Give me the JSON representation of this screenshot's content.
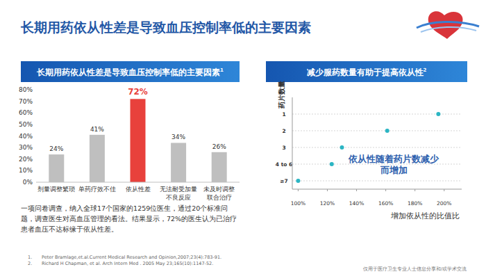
{
  "page": {
    "title": "长期用药依从性差是导致血压控制率低的主要因素",
    "footnotes": [
      {
        "number": "1.",
        "text": "Peter Bramlage,et.al.Current Medical Research and Opinion,2007;23(4):783-91."
      },
      {
        "number": "2.",
        "text": "Richard H Chapman, et al. Arch Intern Med . 2005 May 23;165(10):1147-52."
      }
    ],
    "disclaimer": "仅用于医疗卫生专业人士信息分享和/或学术交流"
  },
  "chart_data": [
    {
      "type": "bar",
      "title": "长期用药依从性差是导致血压控制率低的主要因素",
      "title_ref": "1",
      "categories": [
        "剂量调整繁琐",
        "单药疗效不佳",
        "依从性差",
        "无法耐受加量\n不良反应",
        "未及时调整\n联合治疗"
      ],
      "values": [
        24,
        41,
        72,
        34,
        26
      ],
      "value_labels": [
        "24%",
        "41%",
        "72%",
        "34%",
        "26%"
      ],
      "colors": [
        "#bfbfbf",
        "#bfbfbf",
        "#e8413c",
        "#bfbfbf",
        "#bfbfbf"
      ],
      "ylim": [
        0,
        80
      ],
      "yticks": [
        {
          "value": 0,
          "label": "0%"
        },
        {
          "value": 10,
          "label": "10%"
        },
        {
          "value": 20,
          "label": "20%"
        },
        {
          "value": 30,
          "label": "30%"
        },
        {
          "value": 40,
          "label": "40%"
        },
        {
          "value": 50,
          "label": "50%"
        },
        {
          "value": 60,
          "label": "60%"
        },
        {
          "value": 70,
          "label": "70%"
        },
        {
          "value": 80,
          "label": "80%"
        }
      ],
      "grid": false,
      "data_labels": true,
      "note": "一项问卷调查，纳入全球17个国家的1259位医生，通过20个标准问题，调查医生对高血压管理的看法。结果显示，72%的医生认为已治疗患者血压不达标缘于依从性差。"
    },
    {
      "type": "scatter",
      "title": "减少服药数量有助于提高依从性",
      "title_ref": "2",
      "orientation": "horizontal",
      "categories": [
        "1",
        "2",
        "3",
        "4 to 6",
        "≥7"
      ],
      "values": [
        196,
        161,
        130,
        123,
        100
      ],
      "color": "#2bb5c3",
      "marker": "circle",
      "xlim": [
        96,
        212
      ],
      "xticks": [
        {
          "value": 100,
          "label": "100%"
        },
        {
          "value": 120,
          "label": "120%"
        },
        {
          "value": 140,
          "label": "140%"
        },
        {
          "value": 160,
          "label": "160%"
        },
        {
          "value": 180,
          "label": "180%"
        },
        {
          "value": 200,
          "label": "200%"
        }
      ],
      "grid": true,
      "x_label": "增加依从性的比值比",
      "y_label": "药片数量",
      "annotation": "依从性随着药片数减少\n而增加"
    }
  ]
}
